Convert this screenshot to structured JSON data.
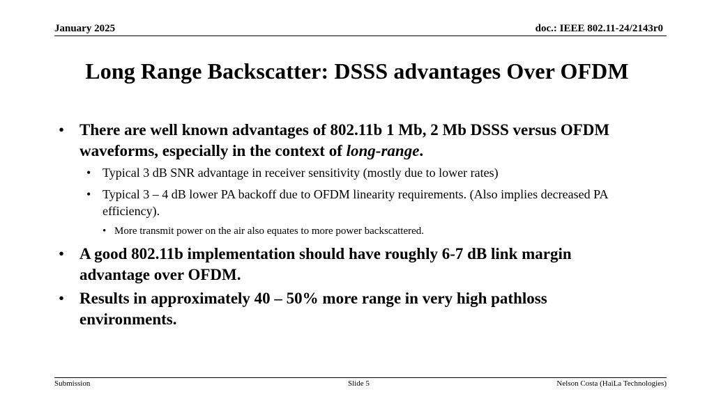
{
  "header": {
    "date": "January 2025",
    "doc_id": "doc.: IEEE 802.11-24/2143r0"
  },
  "slide": {
    "title": "Long Range Backscatter: DSSS advantages Over OFDM",
    "bullet_glyph": "•",
    "bullets": [
      {
        "text": "There are well known advantages of 802.11b 1 Mb, 2 Mb DSSS versus OFDM waveforms, especially in the context of ",
        "emphasis": "long-range",
        "tail": "."
      },
      {
        "text": "Typical 3 dB SNR advantage in receiver sensitivity (mostly due to lower rates)"
      },
      {
        "text": "Typical 3 – 4 dB lower PA backoff due to OFDM linearity requirements. (Also implies decreased PA efficiency)."
      },
      {
        "text": "More transmit power on the air also equates to more power backscattered."
      },
      {
        "text": "A good 802.11b implementation should have roughly 6-7 dB link margin advantage over OFDM."
      },
      {
        "text": "Results in approximately 40 – 50% more range in very high pathloss environments."
      }
    ]
  },
  "footer": {
    "left": "Submission",
    "center": "Slide 5",
    "right": "Nelson Costa (HaiLa Technologies)"
  }
}
